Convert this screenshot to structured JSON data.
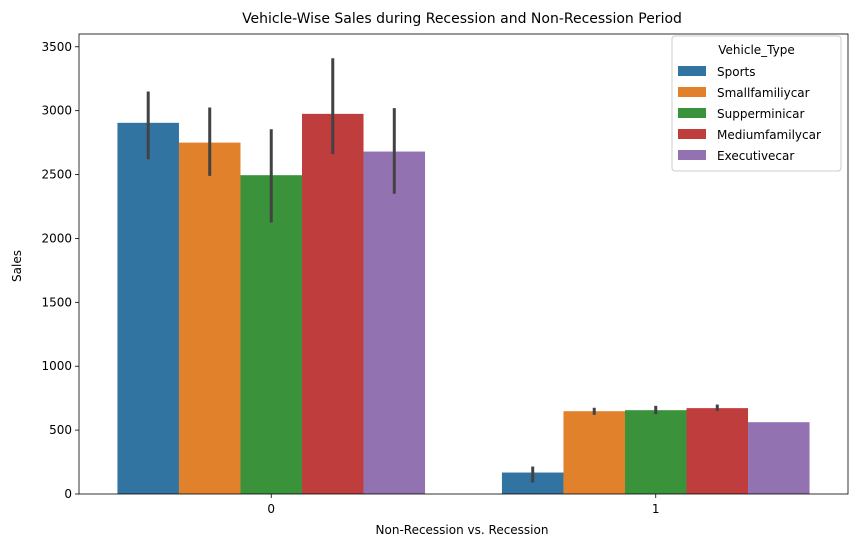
{
  "chart_data": {
    "type": "bar",
    "title": "Vehicle-Wise Sales during Recession and Non-Recession Period",
    "xlabel": "Non-Recession vs. Recession",
    "ylabel": "Sales",
    "categories": [
      "0",
      "1"
    ],
    "ylim": [
      0,
      3600
    ],
    "yticks": [
      0,
      500,
      1000,
      1500,
      2000,
      2500,
      3000,
      3500
    ],
    "grid": false,
    "legend": {
      "title": "Vehicle_Type",
      "placement": "top-right"
    },
    "series": [
      {
        "name": "Sports",
        "color": "#3274a1",
        "values": [
          2905,
          168
        ],
        "ci": [
          [
            2620,
            3150
          ],
          [
            90,
            215
          ]
        ]
      },
      {
        "name": "Smallfamiliycar",
        "color": "#e1812c",
        "values": [
          2750,
          648
        ],
        "ci": [
          [
            2490,
            3025
          ],
          [
            620,
            675
          ]
        ]
      },
      {
        "name": "Supperminicar",
        "color": "#3a923a",
        "values": [
          2495,
          656
        ],
        "ci": [
          [
            2125,
            2855
          ],
          [
            625,
            690
          ]
        ]
      },
      {
        "name": "Mediumfamilycar",
        "color": "#c03d3e",
        "values": [
          2975,
          672
        ],
        "ci": [
          [
            2660,
            3410
          ],
          [
            650,
            700
          ]
        ]
      },
      {
        "name": "Executivecar",
        "color": "#9372b2",
        "values": [
          2680,
          562
        ],
        "ci": [
          [
            2350,
            3020
          ],
          [
            562,
            562
          ]
        ]
      }
    ]
  }
}
